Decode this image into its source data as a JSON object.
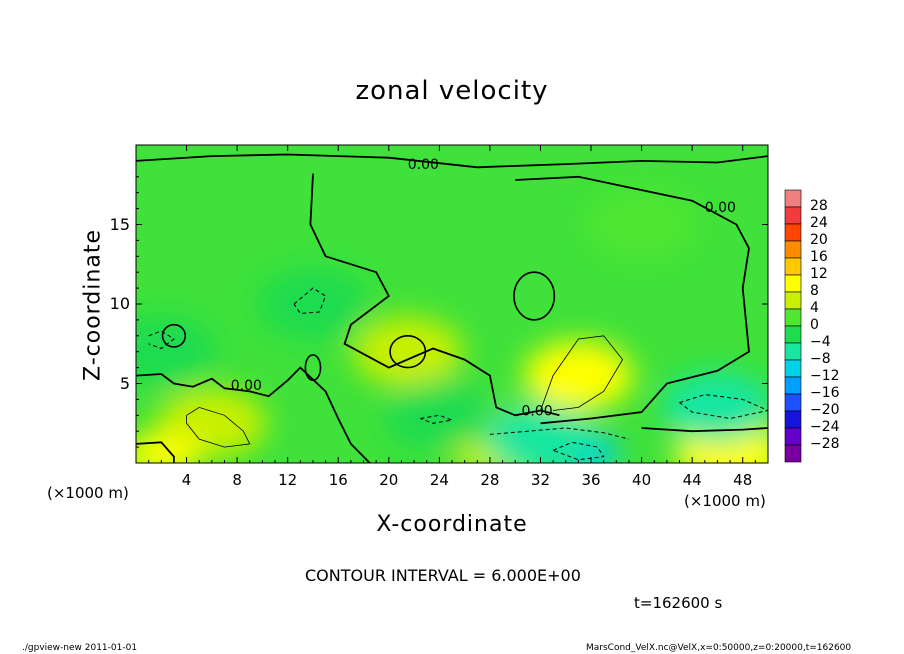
{
  "chart_data": {
    "type": "heatmap",
    "title": "zonal velocity",
    "xlabel": "X-coordinate",
    "ylabel": "Z-coordinate",
    "x_unit": "(×1000 m)",
    "y_unit": "",
    "xlim": [
      0,
      50
    ],
    "ylim": [
      0,
      20
    ],
    "x_ticks": [
      "4",
      "8",
      "12",
      "16",
      "20",
      "24",
      "28",
      "32",
      "36",
      "40",
      "44",
      "48"
    ],
    "y_ticks": [
      "5",
      "10",
      "15"
    ],
    "x_tick_values": [
      4,
      8,
      12,
      16,
      20,
      24,
      28,
      32,
      36,
      40,
      44,
      48
    ],
    "y_tick_values": [
      5,
      10,
      15
    ],
    "contour_labels": [
      "0.00",
      "0.00",
      "0.00",
      "0.00"
    ],
    "colorbar_labels": [
      "28",
      "24",
      "20",
      "16",
      "12",
      "8",
      "4",
      "0",
      "−4",
      "−8",
      "−12",
      "−16",
      "−20",
      "−24",
      "−28"
    ],
    "colorbar_colors": [
      "#f08080",
      "#f03c3c",
      "#ff4500",
      "#ff8c00",
      "#ffc800",
      "#ffff00",
      "#c8f000",
      "#50e632",
      "#1edc50",
      "#19e6a0",
      "#00d2e6",
      "#00a0ff",
      "#1e50ff",
      "#1414dc",
      "#6400c8",
      "#7800a0"
    ],
    "contour_interval": "CONTOUR INTERVAL = 6.000E+00",
    "time_label": "t=162600 s",
    "blobs": [
      {
        "x": 35,
        "y": 5.5,
        "v": 7
      },
      {
        "x": 21.5,
        "y": 7,
        "v": 5
      },
      {
        "x": 6,
        "y": 2.5,
        "v": 5
      },
      {
        "x": 2,
        "y": 0.5,
        "v": 9
      },
      {
        "x": 47,
        "y": 0.5,
        "v": 8
      },
      {
        "x": 29,
        "y": 1.2,
        "v": 4
      },
      {
        "x": 35,
        "y": 0.6,
        "v": -11
      },
      {
        "x": 32,
        "y": 1.5,
        "v": -6
      },
      {
        "x": 46,
        "y": 3.5,
        "v": -6
      },
      {
        "x": 14,
        "y": 10,
        "v": -4
      },
      {
        "x": 2,
        "y": 7,
        "v": -4
      },
      {
        "x": 24,
        "y": 3,
        "v": -3
      },
      {
        "x": 40,
        "y": 15,
        "v": 1
      }
    ]
  },
  "footer": {
    "left": "./gpview-new  2011-01-01",
    "right": "MarsCond_VelX.nc@VelX,x=0:50000,z=0:20000,t=162600"
  }
}
